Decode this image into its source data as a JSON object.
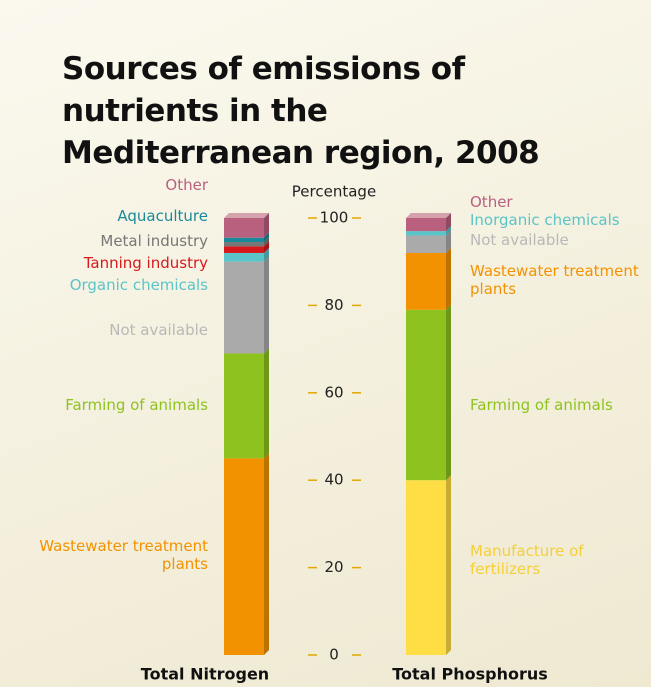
{
  "chart_data": {
    "type": "stacked-bar",
    "title": "Sources of emissions of nutrients in the Mediterranean region, 2008",
    "ylabel": "Percentage",
    "ylim": [
      0,
      100
    ],
    "yticks": [
      0,
      20,
      40,
      60,
      80,
      100
    ],
    "bars": [
      {
        "category": "Total Nitrogen",
        "segments": [
          {
            "name": "Wastewater treatment plants",
            "color": "#f39200",
            "value": 45
          },
          {
            "name": "Farming of animals",
            "color": "#8dc21f",
            "value": 24
          },
          {
            "name": "Not available",
            "color": "#aaaaaa",
            "value": 21
          },
          {
            "name": "Organic chemicals",
            "color": "#5bc4c8",
            "value": 2
          },
          {
            "name": "Tanning industry",
            "color": "#d7191c",
            "value": 1.5
          },
          {
            "name": "Metal industry",
            "color": "#777777",
            "value": 1
          },
          {
            "name": "Aquaculture",
            "color": "#1a8a9a",
            "value": 1
          },
          {
            "name": "Other",
            "color": "#b9607f",
            "value": 4.5
          }
        ]
      },
      {
        "category": "Total Phosphorus",
        "segments": [
          {
            "name": "Manufacture of fertilizers",
            "color": "#ffdd44",
            "value": 40
          },
          {
            "name": "Farming of animals",
            "color": "#8dc21f",
            "value": 39
          },
          {
            "name": "Wastewater treatment plants",
            "color": "#f39200",
            "value": 13
          },
          {
            "name": "Not available",
            "color": "#aaaaaa",
            "value": 4
          },
          {
            "name": "Inorganic chemicals",
            "color": "#5bc4c8",
            "value": 1
          },
          {
            "name": "Other",
            "color": "#b9607f",
            "value": 3
          }
        ]
      }
    ]
  }
}
